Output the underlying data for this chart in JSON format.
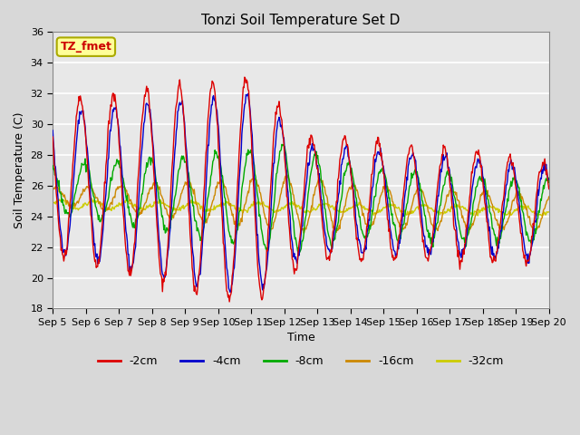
{
  "title": "Tonzi Soil Temperature Set D",
  "xlabel": "Time",
  "ylabel": "Soil Temperature (C)",
  "ylim": [
    18,
    36
  ],
  "yticks": [
    18,
    20,
    22,
    24,
    26,
    28,
    30,
    32,
    34,
    36
  ],
  "xtick_labels": [
    "Sep 5",
    "Sep 6",
    "Sep 7",
    "Sep 8",
    "Sep 9",
    "Sep 10",
    "Sep 11",
    "Sep 12",
    "Sep 13",
    "Sep 14",
    "Sep 15",
    "Sep 16",
    "Sep 17",
    "Sep 18",
    "Sep 19",
    "Sep 20"
  ],
  "legend_label": "TZ_fmet",
  "colors": {
    "-2cm": "#dd0000",
    "-4cm": "#0000cc",
    "-8cm": "#00aa00",
    "-16cm": "#cc8800",
    "-32cm": "#cccc00"
  },
  "plot_bg_color": "#e8e8e8",
  "grid_color": "#ffffff",
  "annotation_box_color": "#ffff99",
  "annotation_text_color": "#cc0000",
  "annotation_border_color": "#aaaa00"
}
